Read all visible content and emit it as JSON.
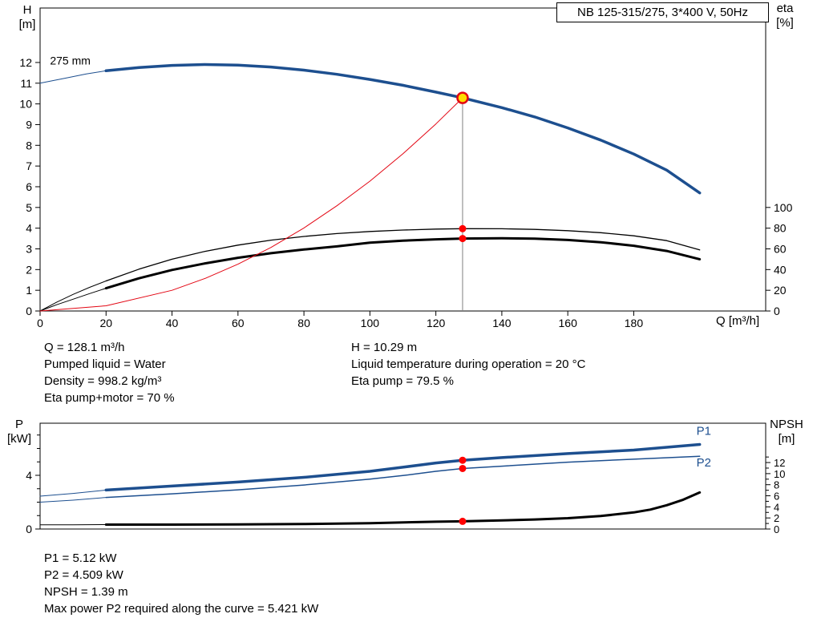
{
  "annotations": {
    "block1": [
      "Q = 128.1 m³/h",
      "Pumped liquid = Water",
      "Density = 998.2 kg/m³",
      "Eta pump+motor = 70 %"
    ],
    "block2": [
      "H = 10.29 m",
      "Liquid temperature during operation = 20 °C",
      "Eta pump = 79.5 %"
    ],
    "block3": [
      "P1 = 5.12 kW",
      "P2 = 4.509 kW",
      "NPSH = 1.39 m",
      "Max power P2 required along the curve = 5.421 kW"
    ]
  },
  "colors": {
    "curve_blue": "#1d4f8f",
    "curve_red": "#e30613",
    "dot_red": "#ff0000",
    "point_yellow": "#ffdd00",
    "black": "#000000",
    "gray": "#808080"
  },
  "chart_data": [
    {
      "type": "line",
      "name": "qh-eta-chart",
      "title": "NB 125-315/275, 3*400 V, 50Hz",
      "xlabel": "Q [m³/h]",
      "ylabel_left": "H [m]",
      "ylabel_right": "eta [%]",
      "ylabel_left_lines": [
        "H",
        "[m]"
      ],
      "ylabel_right_lines": [
        "eta",
        "[%]"
      ],
      "xlim": [
        0,
        220
      ],
      "ylim_left": [
        0,
        14.63
      ],
      "ylim_right": [
        0,
        292.6
      ],
      "grid": false,
      "x_ticks": {
        "size": 14,
        "items": [
          {
            "v": 0,
            "l": "0"
          },
          {
            "v": 20,
            "l": "20"
          },
          {
            "v": 40,
            "l": "40"
          },
          {
            "v": 60,
            "l": "60"
          },
          {
            "v": 80,
            "l": "80"
          },
          {
            "v": 100,
            "l": "100"
          },
          {
            "v": 120,
            "l": "120"
          },
          {
            "v": 140,
            "l": "140"
          },
          {
            "v": 160,
            "l": "160"
          },
          {
            "v": 180,
            "l": "180"
          }
        ]
      },
      "y_left_ticks": {
        "size": 14,
        "items": [
          {
            "v": 0,
            "l": "0"
          },
          {
            "v": 1,
            "l": "1"
          },
          {
            "v": 2,
            "l": "2"
          },
          {
            "v": 3,
            "l": "3"
          },
          {
            "v": 4,
            "l": "4"
          },
          {
            "v": 5,
            "l": "5"
          },
          {
            "v": 6,
            "l": "6"
          },
          {
            "v": 7,
            "l": "7"
          },
          {
            "v": 8,
            "l": "8"
          },
          {
            "v": 9,
            "l": "9"
          },
          {
            "v": 10,
            "l": "10"
          },
          {
            "v": 11,
            "l": "11"
          },
          {
            "v": 12,
            "l": "12"
          }
        ]
      },
      "y_right_ticks": {
        "size": 14,
        "items": [
          {
            "v": 0,
            "l": "0"
          },
          {
            "v": 20,
            "l": "20"
          },
          {
            "v": 40,
            "l": "40"
          },
          {
            "v": 60,
            "l": "60"
          },
          {
            "v": 80,
            "l": "80"
          },
          {
            "v": 100,
            "l": "100"
          }
        ]
      },
      "series": [
        {
          "name": "pump-curve-lead",
          "color": "#1d4f8f",
          "width": 1,
          "axis": "left",
          "points": [
            [
              0,
              11.0
            ],
            [
              8,
              11.25
            ],
            [
              14,
              11.45
            ],
            [
              20,
              11.6
            ]
          ]
        },
        {
          "name": "pump-curve-275mm",
          "color": "#1d4f8f",
          "width": 3.5,
          "axis": "left",
          "points": [
            [
              20,
              11.6
            ],
            [
              30,
              11.76
            ],
            [
              40,
              11.86
            ],
            [
              50,
              11.9
            ],
            [
              60,
              11.87
            ],
            [
              70,
              11.78
            ],
            [
              80,
              11.63
            ],
            [
              90,
              11.43
            ],
            [
              100,
              11.18
            ],
            [
              110,
              10.9
            ],
            [
              120,
              10.57
            ],
            [
              128.1,
              10.29
            ],
            [
              140,
              9.82
            ],
            [
              150,
              9.37
            ],
            [
              160,
              8.84
            ],
            [
              170,
              8.25
            ],
            [
              180,
              7.58
            ],
            [
              190,
              6.8
            ],
            [
              200,
              5.7
            ]
          ]
        },
        {
          "name": "eta-pump-lead",
          "color": "#000000",
          "width": 1,
          "axis": "left",
          "points": [
            [
              0,
              0
            ],
            [
              5,
              0.42
            ],
            [
              10,
              0.8
            ],
            [
              15,
              1.14
            ],
            [
              20,
              1.45
            ]
          ]
        },
        {
          "name": "eta-pump-curve",
          "color": "#000000",
          "width": 1.3,
          "axis": "left",
          "points": [
            [
              20,
              1.45
            ],
            [
              30,
              2.02
            ],
            [
              40,
              2.5
            ],
            [
              50,
              2.88
            ],
            [
              60,
              3.18
            ],
            [
              70,
              3.42
            ],
            [
              80,
              3.6
            ],
            [
              90,
              3.74
            ],
            [
              100,
              3.84
            ],
            [
              110,
              3.91
            ],
            [
              120,
              3.955
            ],
            [
              128.1,
              3.975
            ],
            [
              140,
              3.97
            ],
            [
              150,
              3.94
            ],
            [
              160,
              3.88
            ],
            [
              170,
              3.78
            ],
            [
              180,
              3.63
            ],
            [
              190,
              3.4
            ],
            [
              200,
              2.95
            ]
          ]
        },
        {
          "name": "eta-pump-motor-lead",
          "color": "#000000",
          "width": 1,
          "axis": "left",
          "points": [
            [
              0,
              0
            ],
            [
              5,
              0.3
            ],
            [
              10,
              0.57
            ],
            [
              15,
              0.84
            ],
            [
              20,
              1.1
            ]
          ]
        },
        {
          "name": "eta-pump-motor-curve",
          "color": "#000000",
          "width": 3,
          "axis": "left",
          "points": [
            [
              20,
              1.1
            ],
            [
              30,
              1.58
            ],
            [
              40,
              1.98
            ],
            [
              50,
              2.3
            ],
            [
              60,
              2.57
            ],
            [
              70,
              2.79
            ],
            [
              80,
              2.97
            ],
            [
              90,
              3.12
            ],
            [
              100,
              3.3
            ],
            [
              110,
              3.4
            ],
            [
              120,
              3.46
            ],
            [
              128.1,
              3.5
            ],
            [
              140,
              3.51
            ],
            [
              150,
              3.49
            ],
            [
              160,
              3.43
            ],
            [
              170,
              3.32
            ],
            [
              180,
              3.15
            ],
            [
              190,
              2.9
            ],
            [
              200,
              2.5
            ]
          ]
        },
        {
          "name": "system-curve",
          "color": "#e30613",
          "width": 1,
          "axis": "left",
          "points": [
            [
              0,
              0
            ],
            [
              20,
              0.25
            ],
            [
              40,
              1.0
            ],
            [
              50,
              1.57
            ],
            [
              60,
              2.26
            ],
            [
              70,
              3.07
            ],
            [
              80,
              4.01
            ],
            [
              90,
              5.08
            ],
            [
              100,
              6.27
            ],
            [
              110,
              7.59
            ],
            [
              120,
              9.03
            ],
            [
              128.1,
              10.29
            ]
          ]
        }
      ],
      "vlines": [
        {
          "name": "duty-point-line",
          "x": 128.1,
          "y1": 0,
          "y2": 10.29,
          "color": "#808080",
          "width": 1
        }
      ],
      "markers": [
        {
          "name": "operating-point",
          "x": 128.1,
          "y": 10.29,
          "r": 6.5,
          "fill": "#ffdd00",
          "stroke": "#e30613",
          "sw": 2.5
        },
        {
          "name": "eta-pump-point",
          "x": 128.1,
          "y": 3.975,
          "r": 4.5,
          "fill": "#ff0000"
        },
        {
          "name": "eta-pump-motor-point",
          "x": 128.1,
          "y": 3.5,
          "r": 4.5,
          "fill": "#ff0000"
        }
      ],
      "labels": [
        {
          "name": "impeller-size-label",
          "text": "275 mm",
          "x": 3,
          "y": 11.9,
          "size": 14,
          "color": "#000000",
          "anchor": "start"
        }
      ]
    },
    {
      "type": "line",
      "name": "power-npsh-chart",
      "xlabel": "",
      "ylabel_left": "P [kW]",
      "ylabel_right": "NPSH [m]",
      "ylabel_left_lines": [
        "P",
        "[kW]"
      ],
      "ylabel_right_lines": [
        "NPSH",
        "[m]"
      ],
      "xlim": [
        0,
        220
      ],
      "ylim_left": [
        0,
        7.88
      ],
      "ylim_right": [
        0,
        19.1
      ],
      "grid": false,
      "x_ticks": {
        "size": 14,
        "items": []
      },
      "y_left_ticks": {
        "size": 14,
        "items": [
          {
            "v": 0,
            "l": "0"
          },
          {
            "v": 1
          },
          {
            "v": 2
          },
          {
            "v": 3
          },
          {
            "v": 4,
            "l": "4"
          },
          {
            "v": 5
          },
          {
            "v": 6
          },
          {
            "v": 7
          }
        ]
      },
      "y_right_ticks": {
        "size": 13,
        "items": [
          {
            "v": 0,
            "l": "0"
          },
          {
            "v": 1
          },
          {
            "v": 2,
            "l": "2"
          },
          {
            "v": 3
          },
          {
            "v": 4,
            "l": "4"
          },
          {
            "v": 5
          },
          {
            "v": 6,
            "l": "6"
          },
          {
            "v": 7
          },
          {
            "v": 8,
            "l": "8"
          },
          {
            "v": 9
          },
          {
            "v": 10,
            "l": "10"
          },
          {
            "v": 11
          },
          {
            "v": 12,
            "l": "12"
          },
          {
            "v": 13
          }
        ]
      },
      "series": [
        {
          "name": "p1-lead",
          "color": "#1d4f8f",
          "width": 1,
          "axis": "left",
          "points": [
            [
              0,
              2.45
            ],
            [
              10,
              2.65
            ],
            [
              20,
              2.9
            ]
          ]
        },
        {
          "name": "p1-curve",
          "color": "#1d4f8f",
          "width": 3.5,
          "axis": "left",
          "points": [
            [
              20,
              2.9
            ],
            [
              40,
              3.2
            ],
            [
              60,
              3.5
            ],
            [
              80,
              3.85
            ],
            [
              100,
              4.3
            ],
            [
              110,
              4.6
            ],
            [
              120,
              4.92
            ],
            [
              128.1,
              5.12
            ],
            [
              140,
              5.32
            ],
            [
              160,
              5.62
            ],
            [
              180,
              5.88
            ],
            [
              200,
              6.3
            ]
          ]
        },
        {
          "name": "p2-lead",
          "color": "#1d4f8f",
          "width": 1,
          "axis": "left",
          "points": [
            [
              0,
              2.0
            ],
            [
              10,
              2.15
            ],
            [
              20,
              2.35
            ]
          ]
        },
        {
          "name": "p2-curve",
          "color": "#1d4f8f",
          "width": 1.5,
          "axis": "left",
          "points": [
            [
              20,
              2.35
            ],
            [
              40,
              2.62
            ],
            [
              60,
              2.92
            ],
            [
              80,
              3.28
            ],
            [
              100,
              3.72
            ],
            [
              110,
              3.98
            ],
            [
              120,
              4.3
            ],
            [
              128.1,
              4.509
            ],
            [
              140,
              4.68
            ],
            [
              160,
              4.98
            ],
            [
              180,
              5.2
            ],
            [
              200,
              5.42
            ]
          ]
        },
        {
          "name": "npsh-lead",
          "color": "#000000",
          "width": 1,
          "axis": "right",
          "points": [
            [
              0,
              0.75
            ],
            [
              10,
              0.77
            ],
            [
              20,
              0.8
            ]
          ]
        },
        {
          "name": "npsh-curve",
          "color": "#000000",
          "width": 3,
          "axis": "right",
          "points": [
            [
              20,
              0.8
            ],
            [
              40,
              0.8
            ],
            [
              60,
              0.83
            ],
            [
              80,
              0.9
            ],
            [
              100,
              1.05
            ],
            [
              120,
              1.32
            ],
            [
              128.1,
              1.39
            ],
            [
              140,
              1.55
            ],
            [
              150,
              1.72
            ],
            [
              160,
              1.95
            ],
            [
              170,
              2.35
            ],
            [
              180,
              3.0
            ],
            [
              185,
              3.5
            ],
            [
              190,
              4.3
            ],
            [
              195,
              5.3
            ],
            [
              200,
              6.6
            ]
          ]
        }
      ],
      "vlines": [],
      "markers": [
        {
          "name": "p1-point",
          "x": 128.1,
          "y": 5.12,
          "r": 4.5,
          "fill": "#ff0000",
          "axis": "left"
        },
        {
          "name": "p2-point",
          "x": 128.1,
          "y": 4.509,
          "r": 4.5,
          "fill": "#ff0000",
          "axis": "left"
        },
        {
          "name": "npsh-point",
          "x": 128.1,
          "y": 1.39,
          "r": 4.5,
          "fill": "#ff0000",
          "axis": "right"
        }
      ],
      "labels": [
        {
          "name": "p1-curve-label",
          "text": "P1",
          "x": 199,
          "y": 7.0,
          "size": 15,
          "color": "#1d4f8f",
          "anchor": "start"
        },
        {
          "name": "p2-curve-label",
          "text": "P2",
          "x": 199,
          "y": 4.65,
          "size": 15,
          "color": "#1d4f8f",
          "anchor": "start"
        }
      ]
    }
  ]
}
